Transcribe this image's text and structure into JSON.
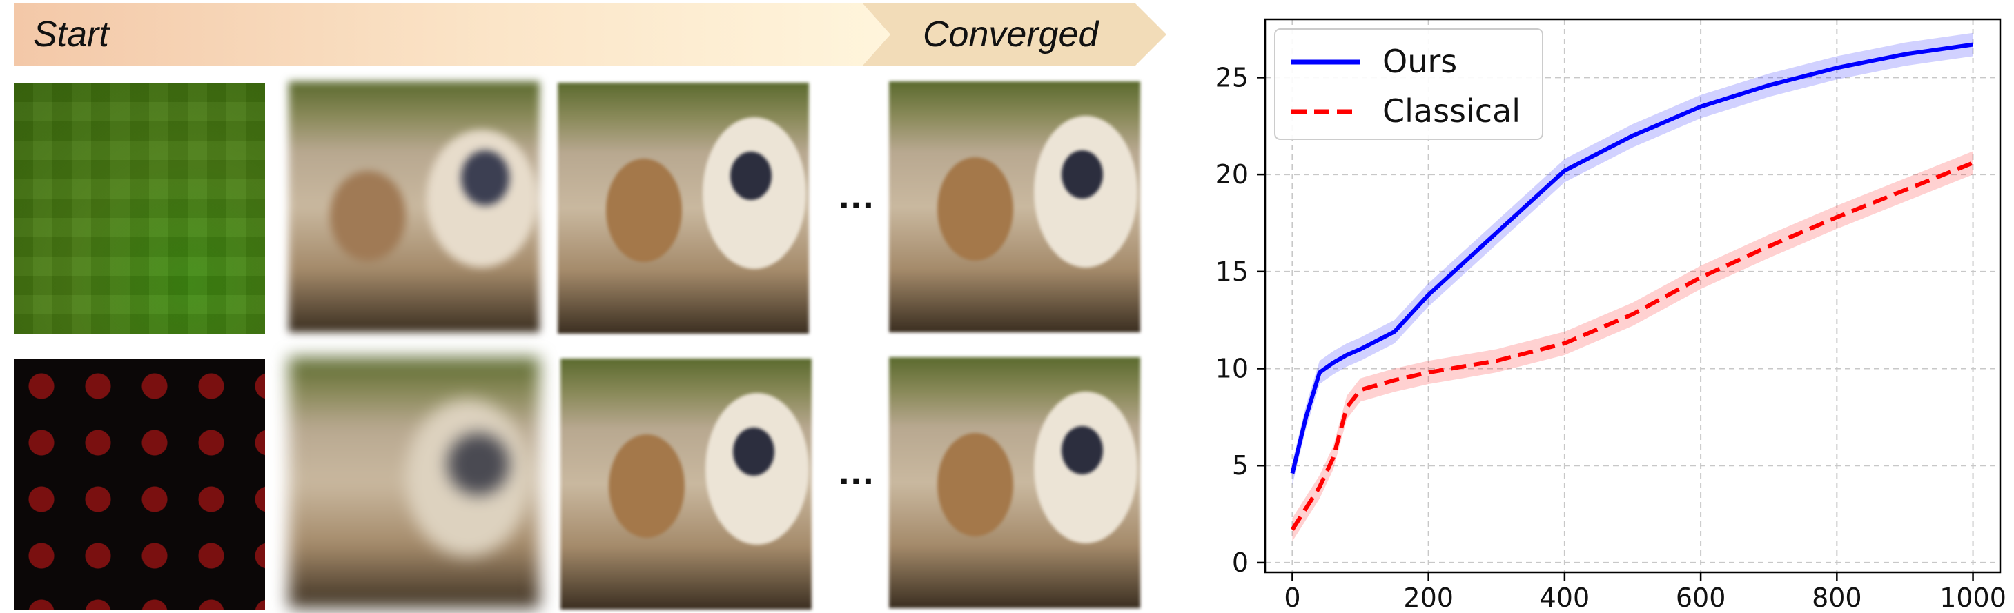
{
  "banner": {
    "start": "Start",
    "end": "Converged"
  },
  "rows": [
    {
      "ellipsis": "..."
    },
    {
      "ellipsis": "..."
    }
  ],
  "chart_data": {
    "type": "line",
    "x": [
      0,
      20,
      40,
      60,
      80,
      100,
      150,
      200,
      300,
      400,
      500,
      600,
      700,
      800,
      900,
      1000
    ],
    "series": [
      {
        "name": "Ours",
        "color": "#0000ff",
        "style": "solid",
        "values": [
          4.6,
          7.5,
          9.8,
          10.3,
          10.7,
          11.0,
          11.9,
          13.8,
          17.0,
          20.2,
          22.0,
          23.5,
          24.6,
          25.5,
          26.2,
          26.7
        ],
        "band": 0.6
      },
      {
        "name": "Classical",
        "color": "#ff0000",
        "style": "dashed",
        "values": [
          1.7,
          2.8,
          3.9,
          5.4,
          8.0,
          8.9,
          9.4,
          9.8,
          10.4,
          11.3,
          12.8,
          14.7,
          16.3,
          17.8,
          19.2,
          20.6
        ],
        "band": 0.6
      }
    ],
    "xlim": [
      -40,
      1040
    ],
    "ylim": [
      -0.5,
      28
    ],
    "xticks": [
      0,
      200,
      400,
      600,
      800,
      1000
    ],
    "yticks": [
      0,
      5,
      10,
      15,
      20,
      25
    ],
    "grid": true,
    "legend": "top-left",
    "title": "",
    "xlabel": "",
    "ylabel": ""
  }
}
